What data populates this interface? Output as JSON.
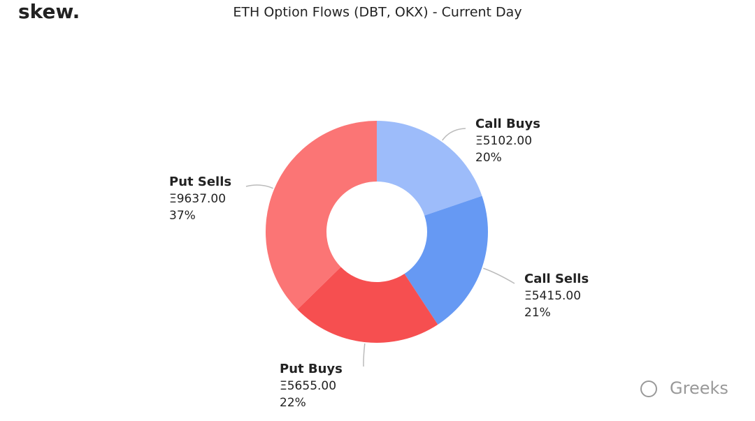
{
  "logo": "skew.",
  "watermark": "Greeks",
  "chart_data": {
    "type": "donut",
    "title": "ETH Option Flows (DBT, OKX) - Current Day",
    "categories": [
      "Call Buys",
      "Call Sells",
      "Put Buys",
      "Put Sells"
    ],
    "values": [
      5102,
      5415,
      5655,
      9637
    ],
    "value_labels": [
      "Ξ5102.00",
      "Ξ5415.00",
      "Ξ5655.00",
      "Ξ9637.00"
    ],
    "percents": [
      20,
      21,
      22,
      37
    ],
    "percent_labels": [
      "20%",
      "21%",
      "22%",
      "37%"
    ],
    "colors": [
      "#9dbcfa",
      "#6699f3",
      "#f64f50",
      "#fb7575"
    ]
  }
}
